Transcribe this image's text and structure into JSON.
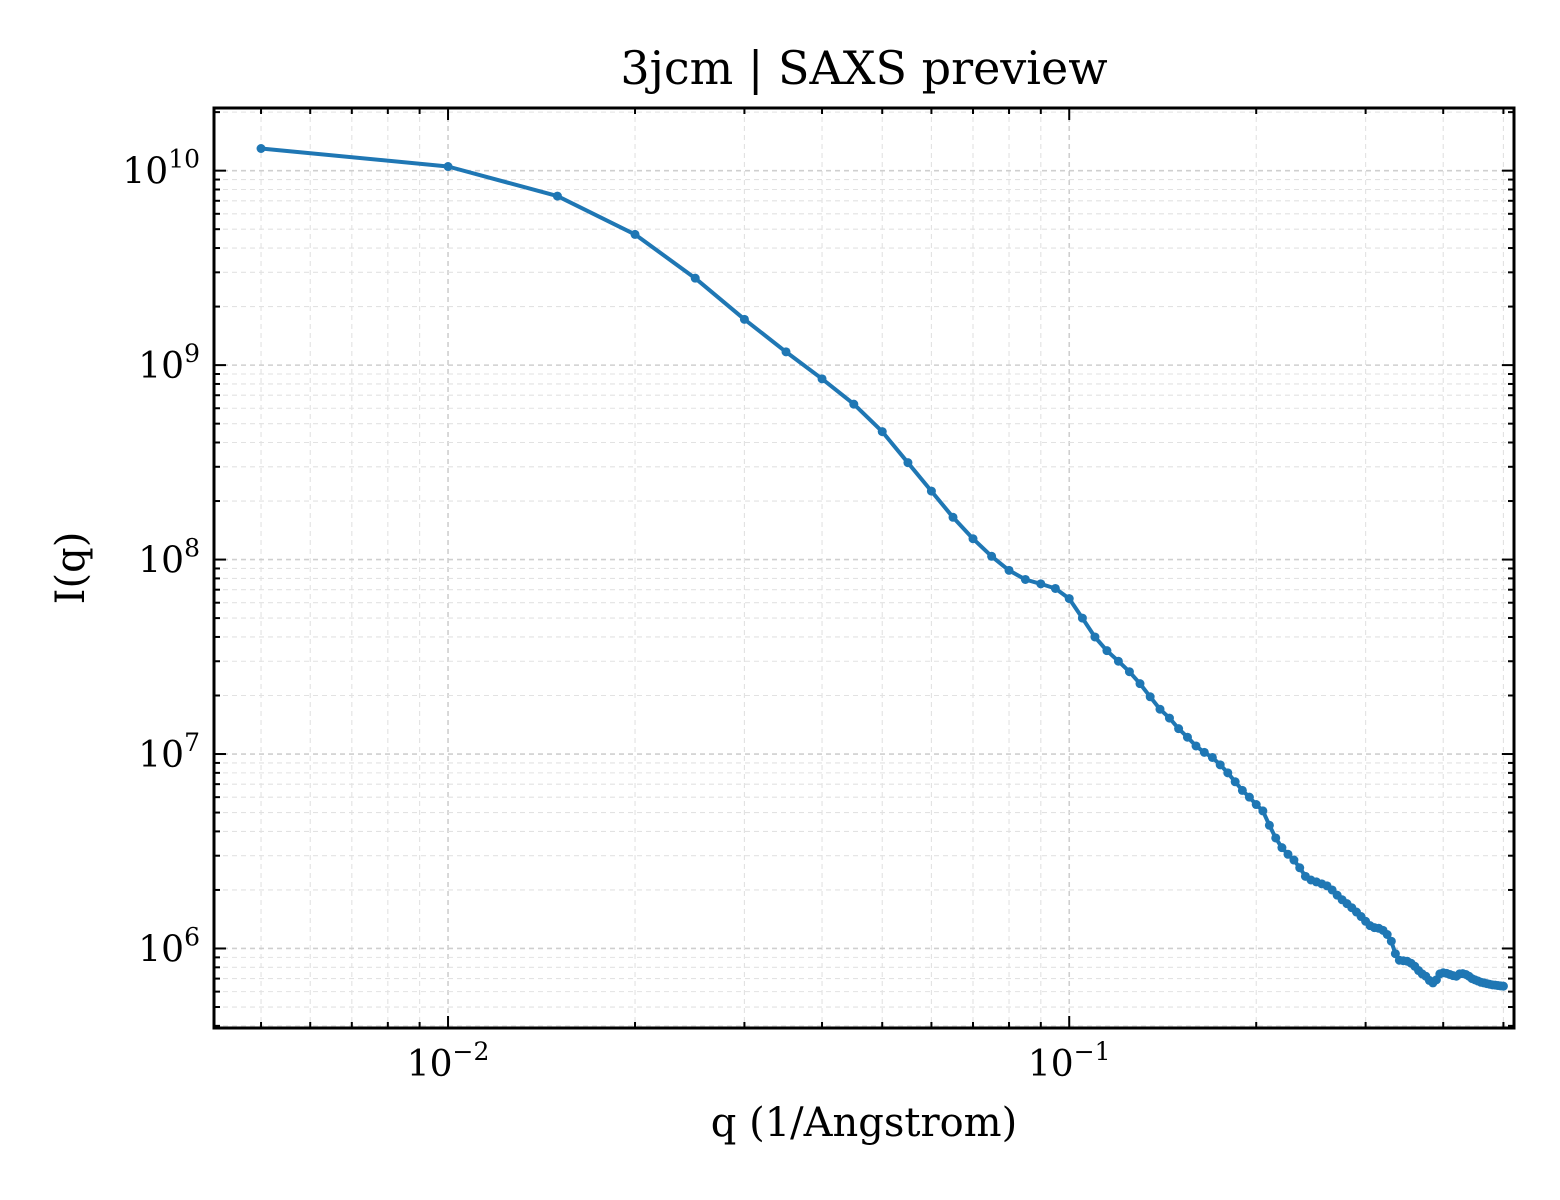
{
  "chart_data": {
    "type": "line",
    "title": "3jcm | SAXS preview",
    "xlabel": "q (1/Angstrom)",
    "ylabel": "I(q)",
    "xscale": "log",
    "yscale": "log",
    "xlim": [
      0.0042,
      0.52
    ],
    "ylim": [
      390000,
      21000000000
    ],
    "grid": true,
    "x_ticks": [
      {
        "value": 0.01,
        "base": "10",
        "exp": "−2"
      },
      {
        "value": 0.1,
        "base": "10",
        "exp": "−1"
      }
    ],
    "y_ticks": [
      {
        "value": 1000000,
        "base": "10",
        "exp": "6"
      },
      {
        "value": 10000000,
        "base": "10",
        "exp": "7"
      },
      {
        "value": 100000000,
        "base": "10",
        "exp": "8"
      },
      {
        "value": 1000000000,
        "base": "10",
        "exp": "9"
      },
      {
        "value": 10000000000,
        "base": "10",
        "exp": "10"
      }
    ],
    "series": [
      {
        "color": "#1f77b4",
        "x": [
          0.005,
          0.01,
          0.015,
          0.02,
          0.025,
          0.03,
          0.035,
          0.04,
          0.045,
          0.05,
          0.055,
          0.06,
          0.065,
          0.07,
          0.075,
          0.08,
          0.085,
          0.09,
          0.095,
          0.1,
          0.105,
          0.11,
          0.115,
          0.12,
          0.125,
          0.13,
          0.135,
          0.14,
          0.145,
          0.15,
          0.155,
          0.16,
          0.165,
          0.17,
          0.175,
          0.18,
          0.185,
          0.19,
          0.195,
          0.2,
          0.205,
          0.21,
          0.215,
          0.22,
          0.225,
          0.23,
          0.235,
          0.24,
          0.245,
          0.25,
          0.255,
          0.26,
          0.265,
          0.27,
          0.275,
          0.28,
          0.285,
          0.29,
          0.295,
          0.3,
          0.305,
          0.31,
          0.315,
          0.32,
          0.325,
          0.33,
          0.335,
          0.34,
          0.345,
          0.35,
          0.355,
          0.36,
          0.365,
          0.37,
          0.375,
          0.38,
          0.385,
          0.39,
          0.395,
          0.4,
          0.405,
          0.41,
          0.415,
          0.42,
          0.425,
          0.43,
          0.435,
          0.44,
          0.445,
          0.45,
          0.455,
          0.46,
          0.465,
          0.47,
          0.475,
          0.48,
          0.485,
          0.49,
          0.495,
          0.5
        ],
        "y": [
          13000000000,
          10500000000,
          7400000000,
          4700000000,
          2800000000,
          1720000000,
          1170000000,
          850000000,
          630000000,
          455000000,
          315000000,
          225000000,
          165000000,
          128000000,
          104000000,
          88000000,
          79000000,
          75000000,
          71000000,
          63000000,
          50000000,
          40000000,
          34000000,
          30000000,
          26500000,
          23000000,
          19700000,
          17000000,
          15300000,
          13500000,
          12200000,
          11000000,
          10200000,
          9600000,
          8800000,
          8000000,
          7200000,
          6500000,
          6000000,
          5500000,
          5100000,
          4300000,
          3700000,
          3300000,
          3050000,
          2850000,
          2600000,
          2350000,
          2250000,
          2200000,
          2150000,
          2100000,
          2000000,
          1880000,
          1780000,
          1700000,
          1620000,
          1540000,
          1460000,
          1380000,
          1310000,
          1280000,
          1270000,
          1240000,
          1180000,
          1090000,
          940000,
          870000,
          865000,
          860000,
          840000,
          810000,
          770000,
          740000,
          720000,
          685000,
          665000,
          690000,
          740000,
          750000,
          745000,
          735000,
          725000,
          720000,
          740000,
          742000,
          735000,
          720000,
          700000,
          690000,
          680000,
          670000,
          665000,
          660000,
          655000,
          650000,
          648000,
          645000,
          642000,
          640000
        ]
      }
    ]
  }
}
